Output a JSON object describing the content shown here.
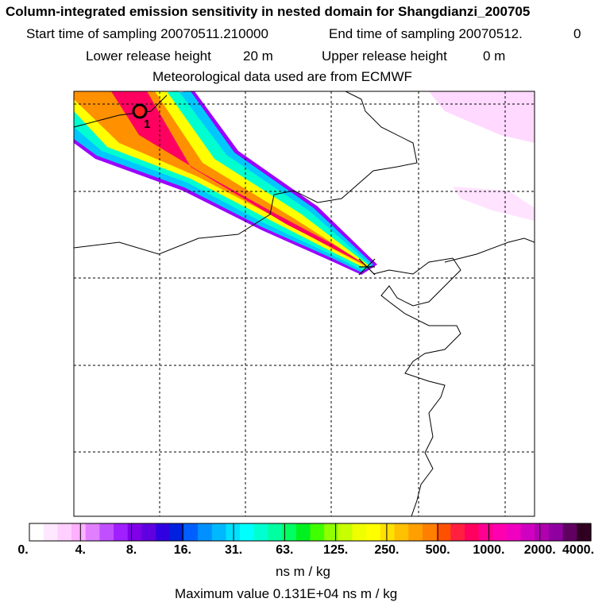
{
  "header": {
    "title": "Column-integrated emission sensitivity in nested domain for Shangdianzi_200705",
    "start_label": "Start time of sampling 20070511.210000",
    "end_label": "End time of sampling 20070512.",
    "end_suffix": "0",
    "lower_label": "Lower release height",
    "lower_value": "20 m",
    "upper_label": "Upper release height",
    "upper_value": "0 m",
    "met_label": "Meteorological data used are from ECMWF"
  },
  "map": {
    "marker_label": "1",
    "plume_colors": [
      "#9b00ff",
      "#00c8ff",
      "#00ffd0",
      "#ffff00",
      "#ff9000",
      "#ff0060"
    ],
    "land_tint": "#ffd0ff"
  },
  "colorbar": {
    "colors": [
      "#ffffff",
      "#ffe8ff",
      "#ffd0ff",
      "#ffb0ff",
      "#e080ff",
      "#c050ff",
      "#a020ff",
      "#8000e8",
      "#6000e0",
      "#3000e0",
      "#0020e0",
      "#0060ff",
      "#0090ff",
      "#00b8ff",
      "#00e0ff",
      "#00ffff",
      "#00ffd0",
      "#00ffa0",
      "#00ff60",
      "#00f020",
      "#40ff00",
      "#90ff00",
      "#c8ff00",
      "#f0ff00",
      "#ffff00",
      "#ffe000",
      "#ffc000",
      "#ffa000",
      "#ff8000",
      "#ff5000",
      "#ff2040",
      "#ff0060",
      "#ff0090",
      "#ff00b0",
      "#f000c0",
      "#d000c0",
      "#b000b0",
      "#9000a0",
      "#600060",
      "#300020"
    ],
    "tick_labels": [
      "0.",
      "4.",
      "8.",
      "16.",
      "31.",
      "63.",
      "125.",
      "250.",
      "500.",
      "1000.",
      "2000.",
      "4000."
    ],
    "units": "ns m / kg",
    "max_text": "Maximum value  0.131E+04 ns m / kg"
  }
}
